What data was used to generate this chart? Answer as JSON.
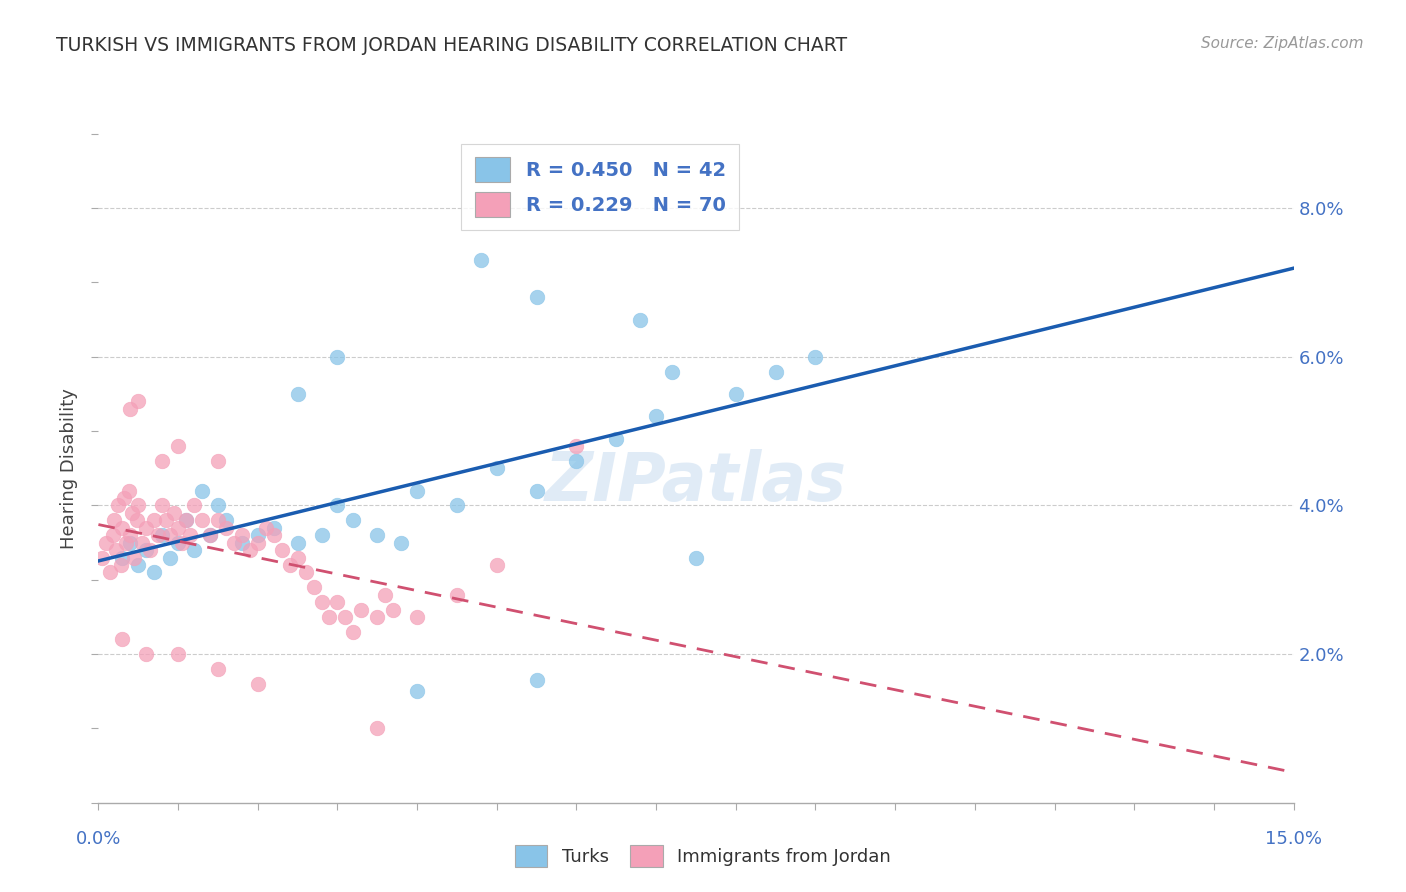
{
  "title": "TURKISH VS IMMIGRANTS FROM JORDAN HEARING DISABILITY CORRELATION CHART",
  "source": "Source: ZipAtlas.com",
  "ylabel": "Hearing Disability",
  "xlim": [
    0.0,
    15.0
  ],
  "ylim": [
    0.0,
    9.0
  ],
  "ytick_vals": [
    2.0,
    4.0,
    6.0,
    8.0
  ],
  "ytick_labels": [
    "2.0%",
    "4.0%",
    "6.0%",
    "8.0%"
  ],
  "turks_color": "#89C4E8",
  "jordan_color": "#F4A0B8",
  "turks_line_color": "#1A5CB0",
  "jordan_line_color": "#D05070",
  "watermark": "ZIPatlas",
  "turks_points": [
    [
      0.3,
      3.3
    ],
    [
      0.4,
      3.5
    ],
    [
      0.5,
      3.2
    ],
    [
      0.6,
      3.4
    ],
    [
      0.7,
      3.1
    ],
    [
      0.8,
      3.6
    ],
    [
      0.9,
      3.3
    ],
    [
      1.0,
      3.5
    ],
    [
      1.1,
      3.8
    ],
    [
      1.2,
      3.4
    ],
    [
      1.3,
      4.2
    ],
    [
      1.4,
      3.6
    ],
    [
      1.5,
      4.0
    ],
    [
      1.6,
      3.8
    ],
    [
      1.8,
      3.5
    ],
    [
      2.0,
      3.6
    ],
    [
      2.2,
      3.7
    ],
    [
      2.5,
      3.5
    ],
    [
      2.8,
      3.6
    ],
    [
      3.0,
      4.0
    ],
    [
      3.2,
      3.8
    ],
    [
      3.5,
      3.6
    ],
    [
      3.8,
      3.5
    ],
    [
      4.0,
      4.2
    ],
    [
      4.5,
      4.0
    ],
    [
      5.0,
      4.5
    ],
    [
      5.5,
      4.2
    ],
    [
      6.0,
      4.6
    ],
    [
      6.5,
      4.9
    ],
    [
      7.0,
      5.2
    ],
    [
      7.5,
      3.3
    ],
    [
      8.0,
      5.5
    ],
    [
      8.5,
      5.8
    ],
    [
      9.0,
      6.0
    ],
    [
      4.8,
      7.3
    ],
    [
      5.5,
      6.8
    ],
    [
      6.8,
      6.5
    ],
    [
      7.2,
      5.8
    ],
    [
      3.0,
      6.0
    ],
    [
      2.5,
      5.5
    ],
    [
      4.0,
      1.5
    ],
    [
      5.5,
      1.65
    ]
  ],
  "jordan_points": [
    [
      0.05,
      3.3
    ],
    [
      0.1,
      3.5
    ],
    [
      0.15,
      3.1
    ],
    [
      0.18,
      3.6
    ],
    [
      0.2,
      3.8
    ],
    [
      0.22,
      3.4
    ],
    [
      0.25,
      4.0
    ],
    [
      0.28,
      3.2
    ],
    [
      0.3,
      3.7
    ],
    [
      0.32,
      4.1
    ],
    [
      0.35,
      3.5
    ],
    [
      0.38,
      4.2
    ],
    [
      0.4,
      3.6
    ],
    [
      0.42,
      3.9
    ],
    [
      0.45,
      3.3
    ],
    [
      0.48,
      3.8
    ],
    [
      0.5,
      4.0
    ],
    [
      0.55,
      3.5
    ],
    [
      0.6,
      3.7
    ],
    [
      0.65,
      3.4
    ],
    [
      0.7,
      3.8
    ],
    [
      0.75,
      3.6
    ],
    [
      0.8,
      4.0
    ],
    [
      0.85,
      3.8
    ],
    [
      0.9,
      3.6
    ],
    [
      0.95,
      3.9
    ],
    [
      1.0,
      3.7
    ],
    [
      1.05,
      3.5
    ],
    [
      1.1,
      3.8
    ],
    [
      1.15,
      3.6
    ],
    [
      1.2,
      4.0
    ],
    [
      1.3,
      3.8
    ],
    [
      1.4,
      3.6
    ],
    [
      1.5,
      3.8
    ],
    [
      1.6,
      3.7
    ],
    [
      1.7,
      3.5
    ],
    [
      1.8,
      3.6
    ],
    [
      1.9,
      3.4
    ],
    [
      2.0,
      3.5
    ],
    [
      2.1,
      3.7
    ],
    [
      2.2,
      3.6
    ],
    [
      2.3,
      3.4
    ],
    [
      2.4,
      3.2
    ],
    [
      2.5,
      3.3
    ],
    [
      2.6,
      3.1
    ],
    [
      2.7,
      2.9
    ],
    [
      2.8,
      2.7
    ],
    [
      2.9,
      2.5
    ],
    [
      3.0,
      2.7
    ],
    [
      3.1,
      2.5
    ],
    [
      3.2,
      2.3
    ],
    [
      3.3,
      2.6
    ],
    [
      3.5,
      2.5
    ],
    [
      3.6,
      2.8
    ],
    [
      3.7,
      2.6
    ],
    [
      4.0,
      2.5
    ],
    [
      4.5,
      2.8
    ],
    [
      5.0,
      3.2
    ],
    [
      0.5,
      5.4
    ],
    [
      1.0,
      4.8
    ],
    [
      1.5,
      4.6
    ],
    [
      0.8,
      4.6
    ],
    [
      0.4,
      5.3
    ],
    [
      6.0,
      4.8
    ],
    [
      0.3,
      2.2
    ],
    [
      0.6,
      2.0
    ],
    [
      1.0,
      2.0
    ],
    [
      1.5,
      1.8
    ],
    [
      2.0,
      1.6
    ],
    [
      3.5,
      1.0
    ]
  ]
}
